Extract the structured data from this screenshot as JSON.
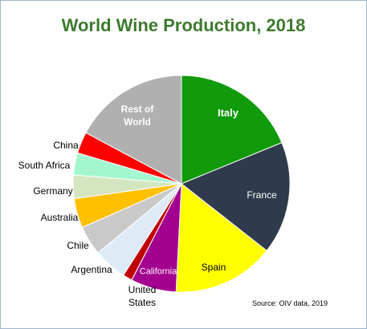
{
  "chart_data": {
    "type": "pie",
    "title": "World Wine Production, 2018",
    "source": "Source: OIV data, 2019",
    "categories": [
      "Italy",
      "France",
      "Spain",
      "California",
      "United States",
      "Argentina",
      "Chile",
      "Australia",
      "Germany",
      "South Africa",
      "China",
      "Rest of World"
    ],
    "values": [
      18.8,
      16.8,
      15.2,
      6.8,
      1.4,
      5.0,
      4.4,
      4.4,
      3.5,
      3.3,
      3.2,
      17.2
    ],
    "colors": [
      "#119a0c",
      "#2f3b4c",
      "#ffff00",
      "#a3008f",
      "#c00000",
      "#deebf7",
      "#c9c9c9",
      "#ffc000",
      "#d4e6bf",
      "#a3f7cf",
      "#ff0000",
      "#b0b0b0"
    ]
  }
}
